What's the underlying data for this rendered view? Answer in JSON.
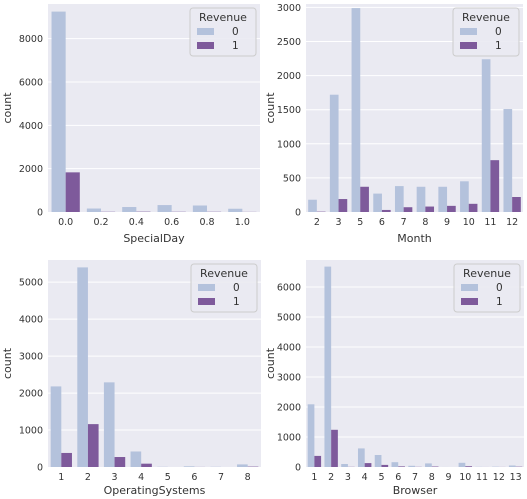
{
  "colors": {
    "background": "#ffffff",
    "plot_background": "#eaeaf2",
    "grid": "#ffffff",
    "revenue_0": "#b4c2dc",
    "revenue_1": "#7e5a9b",
    "legend_border": "#cccccc",
    "text": "#333333"
  },
  "chart_data": [
    {
      "id": "specialday",
      "type": "bar",
      "xlabel": "SpecialDay",
      "ylabel": "count",
      "categories": [
        "0.0",
        "0.2",
        "0.4",
        "0.6",
        "0.8",
        "1.0"
      ],
      "ylim": [
        0,
        9600
      ],
      "yticks": [
        0,
        2000,
        4000,
        6000,
        8000
      ],
      "grid": true,
      "legend": {
        "title": "Revenue",
        "placement": "top-right",
        "labels": [
          "0",
          "1"
        ]
      },
      "series": [
        {
          "name": "0",
          "values": [
            9250,
            160,
            230,
            320,
            300,
            150
          ]
        },
        {
          "name": "1",
          "values": [
            1830,
            10,
            15,
            10,
            10,
            5
          ]
        }
      ]
    },
    {
      "id": "month",
      "type": "bar",
      "xlabel": "Month",
      "ylabel": "count",
      "categories": [
        "2",
        "3",
        "5",
        "6",
        "7",
        "8",
        "9",
        "10",
        "11",
        "12"
      ],
      "ylim": [
        0,
        3050
      ],
      "yticks": [
        0,
        500,
        1000,
        1500,
        2000,
        2500,
        3000
      ],
      "grid": true,
      "legend": {
        "title": "Revenue",
        "placement": "top-right",
        "labels": [
          "0",
          "1"
        ]
      },
      "series": [
        {
          "name": "0",
          "values": [
            180,
            1720,
            2990,
            270,
            380,
            370,
            370,
            450,
            2240,
            1510
          ]
        },
        {
          "name": "1",
          "values": [
            5,
            190,
            370,
            30,
            70,
            80,
            90,
            120,
            760,
            220
          ]
        }
      ]
    },
    {
      "id": "operatingsystems",
      "type": "bar",
      "xlabel": "OperatingSystems",
      "ylabel": "count",
      "categories": [
        "1",
        "2",
        "3",
        "4",
        "5",
        "6",
        "7",
        "8"
      ],
      "ylim": [
        0,
        5600
      ],
      "yticks": [
        0,
        1000,
        2000,
        3000,
        4000,
        5000
      ],
      "grid": true,
      "legend": {
        "title": "Revenue",
        "placement": "top-right",
        "labels": [
          "0",
          "1"
        ]
      },
      "series": [
        {
          "name": "0",
          "values": [
            2180,
            5400,
            2290,
            420,
            5,
            18,
            5,
            70
          ]
        },
        {
          "name": "1",
          "values": [
            380,
            1160,
            270,
            90,
            0,
            2,
            0,
            10
          ]
        }
      ]
    },
    {
      "id": "browser",
      "type": "bar",
      "xlabel": "Browser",
      "ylabel": "count",
      "categories": [
        "1",
        "2",
        "3",
        "4",
        "5",
        "6",
        "7",
        "8",
        "9",
        "10",
        "11",
        "12",
        "13"
      ],
      "ylim": [
        0,
        6900
      ],
      "yticks": [
        0,
        1000,
        2000,
        3000,
        4000,
        5000,
        6000
      ],
      "grid": true,
      "legend": {
        "title": "Revenue",
        "placement": "top-right",
        "labels": [
          "0",
          "1"
        ]
      },
      "series": [
        {
          "name": "0",
          "values": [
            2090,
            6680,
            100,
            620,
            400,
            160,
            40,
            120,
            1,
            140,
            5,
            10,
            50
          ]
        },
        {
          "name": "1",
          "values": [
            370,
            1240,
            5,
            130,
            70,
            20,
            5,
            15,
            0,
            25,
            1,
            2,
            10
          ]
        }
      ]
    }
  ]
}
